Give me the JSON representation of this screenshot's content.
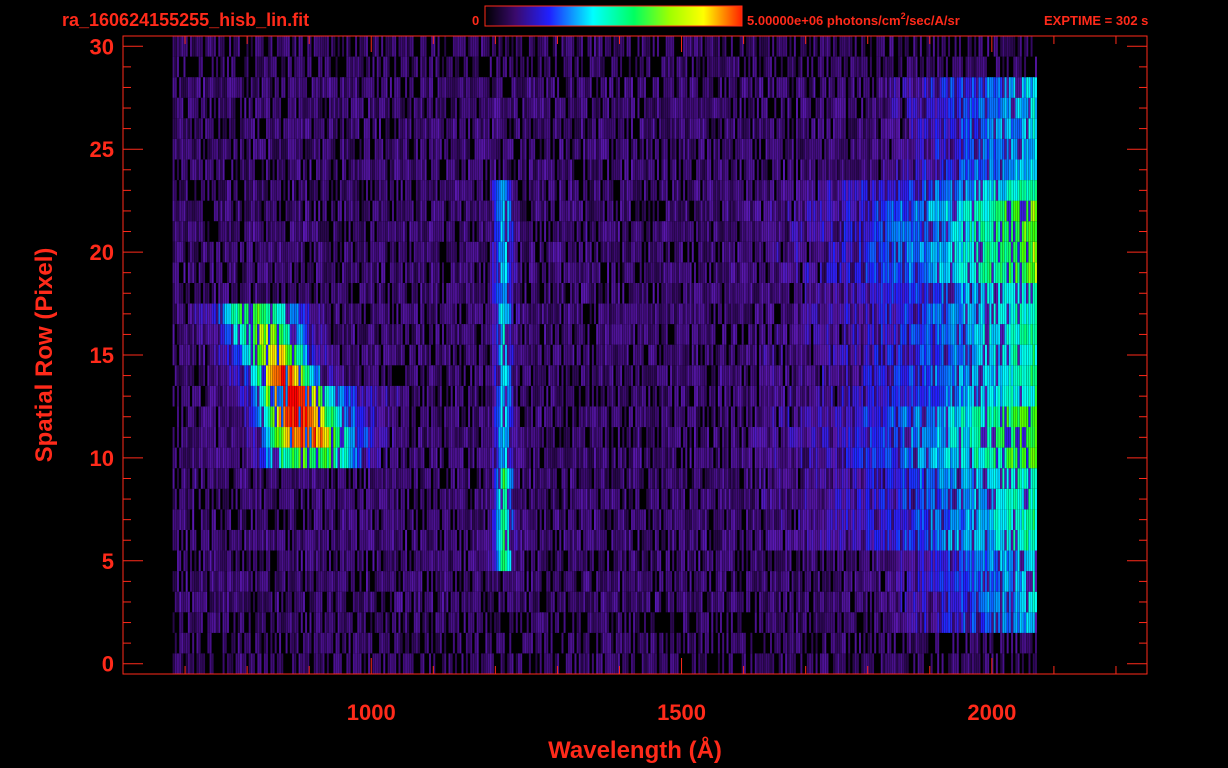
{
  "header": {
    "filename": "ra_160624155255_hisb_lin.fit",
    "colorbar_min_label": "0",
    "colorbar_max_label": "5.00000e+06 photons/cm",
    "colorbar_unit_sup": "2",
    "colorbar_unit_rest": "/sec/A/sr",
    "exptime": "EXPTIME = 302 s"
  },
  "colors": {
    "text": "#ff2a1a",
    "axes": "#ff2a1a",
    "background": "#000000",
    "colormap": [
      "#000000",
      "#3a0a6e",
      "#5a18b0",
      "#2020ff",
      "#0090ff",
      "#00ffff",
      "#00ff80",
      "#40ff00",
      "#ffff00",
      "#ff8000",
      "#ff0000"
    ]
  },
  "chart_data": {
    "type": "heatmap",
    "xlabel": "Wavelength (Å)",
    "ylabel": "Spatial Row (Pixel)",
    "xlim": [
      600,
      2250
    ],
    "ylim": [
      -0.5,
      30.5
    ],
    "xticks": [
      1000,
      1500,
      2000
    ],
    "yticks": [
      0,
      5,
      10,
      15,
      20,
      25,
      30
    ],
    "x_minor_step": 100,
    "y_minor_step": 1,
    "grid": false,
    "data_x_range": [
      680,
      2070
    ],
    "rows": 31,
    "colorbar": {
      "min": 0,
      "max": 5000000,
      "unit": "photons/cm^2/sec/A/sr"
    },
    "features": [
      {
        "name": "Ly-alpha line",
        "x_center": 1216,
        "rows": [
          5,
          23
        ],
        "level": 0.52
      },
      {
        "name": "comet emission",
        "x_range": [
          760,
          1010
        ],
        "rows": [
          10,
          17
        ],
        "level": 0.58
      },
      {
        "name": "solar continuum",
        "x_range": [
          1600,
          2070
        ],
        "rows": [
          6,
          23
        ],
        "level": 0.7
      }
    ]
  }
}
